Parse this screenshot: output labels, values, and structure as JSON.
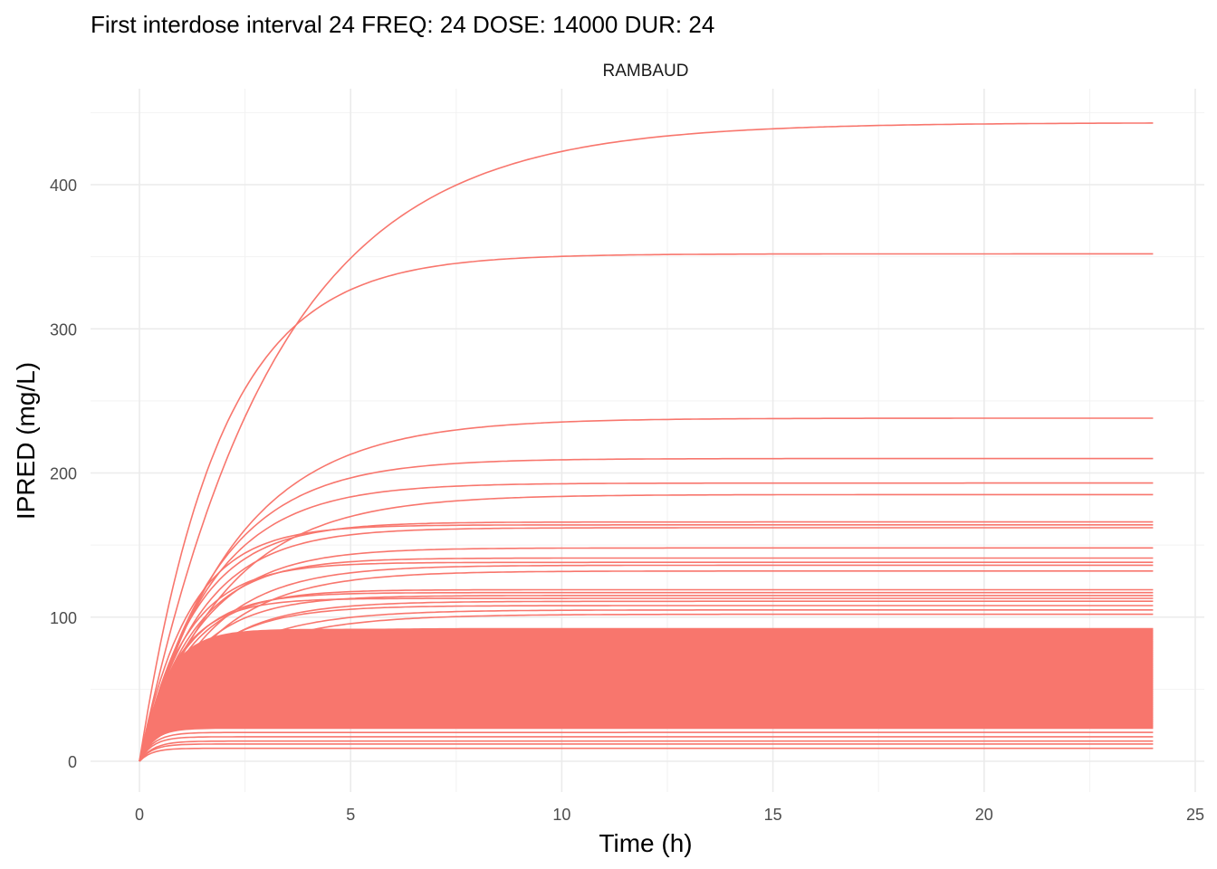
{
  "chart_data": {
    "type": "line",
    "title": "First interdose interval 24 FREQ: 24 DOSE: 14000 DUR: 24",
    "facet_label": "RAMBAUD",
    "xlabel": "Time (h)",
    "ylabel": "IPRED (mg/L)",
    "xlim": [
      0,
      24
    ],
    "ylim": [
      0,
      450
    ],
    "x_ticks": [
      "0",
      "5",
      "10",
      "15",
      "20",
      "25"
    ],
    "y_ticks": [
      "0",
      "100",
      "200",
      "300",
      "400"
    ],
    "grid": true,
    "line_color": "#F8766D",
    "series_model": "IPRED = plateau * (1 - exp(-rate * t)), per individual",
    "plateaus": [
      443,
      352,
      238,
      210,
      193,
      185,
      166,
      164,
      162,
      148,
      141,
      138,
      136,
      132,
      119,
      117,
      115,
      113,
      111,
      108,
      105,
      102,
      92,
      90.5,
      89,
      87.5,
      86,
      84.5,
      83,
      81.5,
      80,
      78.5,
      77,
      75.5,
      74,
      72.5,
      71,
      69.5,
      68,
      66.5,
      65,
      63.5,
      62,
      60.5,
      59,
      57.5,
      56,
      54.5,
      53,
      51.5,
      50,
      48.5,
      47,
      45.5,
      44,
      42.5,
      41,
      39.5,
      38,
      36.5,
      35,
      33.5,
      32,
      30.5,
      29,
      27.5,
      26,
      24.5,
      23,
      20,
      17,
      14,
      12,
      9
    ],
    "rates": [
      0.31,
      0.53,
      0.45,
      0.55,
      0.6,
      0.5,
      0.75,
      0.85,
      0.7,
      0.7,
      0.8,
      0.9,
      0.65,
      0.6,
      0.9,
      1.0,
      0.8,
      1.1,
      0.7,
      0.75,
      0.6,
      0.55,
      0.9,
      1.3,
      0.8,
      1.6,
      1.0,
      1.2,
      0.7,
      1.8,
      1.1,
      0.9,
      1.4,
      2.0,
      1.0,
      1.2,
      1.6,
      0.8,
      2.2,
      1.3,
      1.0,
      1.7,
      1.2,
      2.4,
      1.5,
      1.1,
      1.9,
      1.3,
      2.0,
      1.6,
      1.4,
      2.2,
      1.8,
      1.5,
      2.5,
      1.9,
      1.7,
      2.3,
      2.0,
      2.6,
      1.9,
      2.4,
      2.2,
      2.8,
      2.5,
      2.7,
      3.0,
      2.6,
      3.0,
      3.0,
      3.2,
      3.0,
      3.3,
      3.5
    ]
  }
}
